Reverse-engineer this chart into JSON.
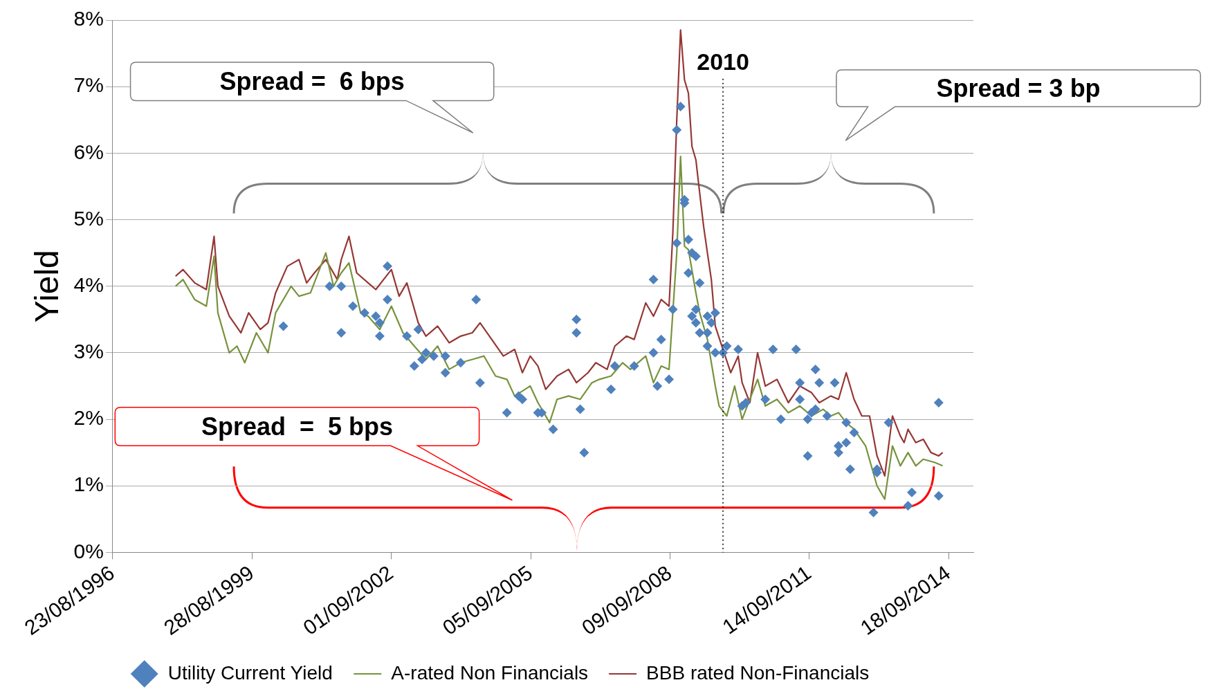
{
  "chart_data": {
    "type": "line",
    "ylabel": "Yield",
    "legend": "bottom",
    "grid": "y",
    "xlim": [
      "1996-08-23",
      "2015-04-01"
    ],
    "xticks": [
      {
        "value": "1996-08-23",
        "label": "23/08/1996"
      },
      {
        "value": "1999-08-28",
        "label": "28/08/1999"
      },
      {
        "value": "2002-09-01",
        "label": "01/09/2002"
      },
      {
        "value": "2005-09-05",
        "label": "05/09/2005"
      },
      {
        "value": "2008-09-09",
        "label": "09/09/2008"
      },
      {
        "value": "2011-09-14",
        "label": "14/09/2011"
      },
      {
        "value": "2014-09-18",
        "label": "18/09/2014"
      }
    ],
    "ylim": [
      0,
      8
    ],
    "yticks": [
      {
        "value": 0,
        "label": "0%"
      },
      {
        "value": 1,
        "label": "1%"
      },
      {
        "value": 2,
        "label": "2%"
      },
      {
        "value": 3,
        "label": "3%"
      },
      {
        "value": 4,
        "label": "4%"
      },
      {
        "value": 5,
        "label": "5%"
      },
      {
        "value": 6,
        "label": "6%"
      },
      {
        "value": 7,
        "label": "7%"
      },
      {
        "value": 8,
        "label": "8%"
      }
    ],
    "annotations": [
      "Spread =  6 bps",
      "Spread = 3 bp",
      "Spread  =  5 bps"
    ],
    "ref_lines": [
      {
        "axis": "x",
        "value": "2009-11",
        "label": "2010",
        "line_style": "dotted",
        "color": "#000000"
      }
    ],
    "series": [
      {
        "name": "Utility Current Yield",
        "type": "scatter",
        "marker": "diamond",
        "color": "#4f81bd",
        "x": [
          "2000-05",
          "2001-05",
          "2001-08",
          "2001-08",
          "2001-11",
          "2002-02",
          "2002-05",
          "2002-06",
          "2002-06",
          "2002-08",
          "2002-08",
          "2003-01",
          "2003-03",
          "2003-04",
          "2003-05",
          "2003-06",
          "2003-08",
          "2003-11",
          "2003-11",
          "2004-03",
          "2004-07",
          "2004-08",
          "2005-03",
          "2005-06",
          "2005-07",
          "2005-11",
          "2005-12",
          "2006-03",
          "2006-09",
          "2006-09",
          "2006-10",
          "2006-11",
          "2007-06",
          "2007-07",
          "2007-12",
          "2008-05",
          "2008-05",
          "2008-06",
          "2008-07",
          "2008-09",
          "2008-10",
          "2008-11",
          "2008-11",
          "2008-12",
          "2009-01",
          "2009-01",
          "2009-02",
          "2009-02",
          "2009-03",
          "2009-03",
          "2009-04",
          "2009-04",
          "2009-04",
          "2009-05",
          "2009-05",
          "2009-07",
          "2009-07",
          "2009-07",
          "2009-08",
          "2009-09",
          "2009-09",
          "2009-11",
          "2009-12",
          "2010-03",
          "2010-04",
          "2010-05",
          "2010-10",
          "2010-12",
          "2011-02",
          "2011-06",
          "2011-07",
          "2011-07",
          "2011-09",
          "2011-09",
          "2011-10",
          "2011-11",
          "2011-11",
          "2011-12",
          "2012-02",
          "2012-04",
          "2012-05",
          "2012-05",
          "2012-07",
          "2012-07",
          "2012-08",
          "2012-09",
          "2013-02",
          "2013-03",
          "2013-03",
          "2013-06",
          "2013-11",
          "2013-12",
          "2014-07",
          "2014-07"
        ],
        "values": [
          3.4,
          4.0,
          3.3,
          4.0,
          3.7,
          3.6,
          3.55,
          3.45,
          3.25,
          3.8,
          4.3,
          3.25,
          2.8,
          3.35,
          2.9,
          3.0,
          2.95,
          2.95,
          2.7,
          2.85,
          3.8,
          2.55,
          2.1,
          2.35,
          2.3,
          2.1,
          2.1,
          1.85,
          3.5,
          3.3,
          2.15,
          1.5,
          2.45,
          2.8,
          2.8,
          4.1,
          3.0,
          2.5,
          3.2,
          2.6,
          3.65,
          6.35,
          4.65,
          6.7,
          5.25,
          5.3,
          4.7,
          4.2,
          3.55,
          4.5,
          4.45,
          3.45,
          3.65,
          4.05,
          3.3,
          3.1,
          3.3,
          3.55,
          3.45,
          3.6,
          3.0,
          3.0,
          3.1,
          3.05,
          2.2,
          2.25,
          2.3,
          3.05,
          2.0,
          3.05,
          2.3,
          2.55,
          2.0,
          1.45,
          2.1,
          2.75,
          2.15,
          2.55,
          2.05,
          2.55,
          1.5,
          1.6,
          1.65,
          1.95,
          1.25,
          1.8,
          0.6,
          1.2,
          1.25,
          1.95,
          0.7,
          0.9,
          0.85,
          2.25
        ]
      },
      {
        "name": "A-rated Non Financials",
        "type": "line",
        "marker": "none",
        "color": "#77933c",
        "x": [
          "1998-01",
          "1998-03",
          "1998-06",
          "1998-09",
          "1998-11",
          "1998-12",
          "1999-03",
          "1999-05",
          "1999-07",
          "1999-10",
          "2000-01",
          "2000-03",
          "2000-07",
          "2000-09",
          "2000-12",
          "2001-04",
          "2001-06",
          "2001-08",
          "2001-10",
          "2002-01",
          "2002-03",
          "2002-06",
          "2002-09",
          "2002-12",
          "2003-03",
          "2003-06",
          "2003-09",
          "2003-12",
          "2004-03",
          "2004-06",
          "2004-09",
          "2004-12",
          "2005-03",
          "2005-05",
          "2005-09",
          "2005-11",
          "2006-02",
          "2006-04",
          "2006-07",
          "2006-10",
          "2007-01",
          "2007-03",
          "2007-06",
          "2007-09",
          "2007-11",
          "2008-03",
          "2008-05",
          "2008-07",
          "2008-09",
          "2008-11",
          "2008-12",
          "2009-01",
          "2009-02",
          "2009-04",
          "2009-05",
          "2009-07",
          "2009-09",
          "2009-10",
          "2009-12",
          "2010-02",
          "2010-04",
          "2010-06",
          "2010-08",
          "2010-10",
          "2011-01",
          "2011-04",
          "2011-07",
          "2011-10",
          "2012-01",
          "2012-03",
          "2012-05",
          "2012-07",
          "2012-09",
          "2012-12",
          "2013-03",
          "2013-05",
          "2013-07",
          "2013-09",
          "2013-11",
          "2014-01",
          "2014-03",
          "2014-06",
          "2014-08"
        ],
        "values": [
          4.0,
          4.1,
          3.8,
          3.7,
          4.45,
          3.6,
          3.0,
          3.1,
          2.85,
          3.3,
          3.0,
          3.6,
          4.0,
          3.85,
          3.9,
          4.5,
          4.0,
          4.2,
          4.35,
          3.6,
          3.55,
          3.35,
          3.7,
          3.3,
          3.1,
          2.9,
          3.1,
          2.75,
          2.85,
          2.9,
          2.95,
          2.65,
          2.6,
          2.35,
          2.5,
          2.25,
          1.95,
          2.3,
          2.35,
          2.3,
          2.55,
          2.6,
          2.65,
          2.85,
          2.75,
          2.95,
          2.55,
          2.8,
          2.75,
          4.5,
          5.95,
          4.6,
          4.55,
          3.9,
          3.6,
          3.2,
          2.5,
          2.2,
          2.05,
          2.5,
          2.0,
          2.3,
          2.6,
          2.2,
          2.3,
          2.1,
          2.2,
          2.05,
          2.15,
          2.05,
          2.1,
          1.95,
          1.85,
          1.6,
          1.0,
          0.8,
          1.6,
          1.3,
          1.5,
          1.3,
          1.4,
          1.35,
          1.3
        ]
      },
      {
        "name": "BBB rated Non-Financials",
        "type": "line",
        "marker": "none",
        "color": "#953735",
        "x": [
          "1998-01",
          "1998-03",
          "1998-06",
          "1998-09",
          "1998-11",
          "1998-12",
          "1999-03",
          "1999-06",
          "1999-08",
          "1999-11",
          "2000-01",
          "2000-03",
          "2000-06",
          "2000-09",
          "2000-11",
          "2001-01",
          "2001-04",
          "2001-07",
          "2001-08",
          "2001-10",
          "2001-12",
          "2002-03",
          "2002-05",
          "2002-07",
          "2002-09",
          "2002-11",
          "2003-01",
          "2003-04",
          "2003-06",
          "2003-09",
          "2003-12",
          "2004-03",
          "2004-06",
          "2004-08",
          "2004-11",
          "2005-02",
          "2005-05",
          "2005-07",
          "2005-09",
          "2005-11",
          "2006-01",
          "2006-04",
          "2006-07",
          "2006-09",
          "2006-12",
          "2007-02",
          "2007-05",
          "2007-07",
          "2007-10",
          "2007-12",
          "2008-03",
          "2008-05",
          "2008-07",
          "2008-09",
          "2008-10",
          "2008-11",
          "2008-12",
          "2009-01",
          "2009-02",
          "2009-03",
          "2009-04",
          "2009-05",
          "2009-06",
          "2009-07",
          "2009-08",
          "2009-09",
          "2009-11",
          "2010-01",
          "2010-03",
          "2010-04",
          "2010-06",
          "2010-08",
          "2010-10",
          "2011-01",
          "2011-04",
          "2011-07",
          "2011-10",
          "2011-12",
          "2012-03",
          "2012-05",
          "2012-07",
          "2012-09",
          "2012-11",
          "2013-01",
          "2013-03",
          "2013-05",
          "2013-07",
          "2013-09",
          "2013-10",
          "2013-11",
          "2014-01",
          "2014-03",
          "2014-05",
          "2014-07",
          "2014-08"
        ],
        "values": [
          4.15,
          4.25,
          4.05,
          3.95,
          4.75,
          4.0,
          3.55,
          3.3,
          3.6,
          3.35,
          3.45,
          3.9,
          4.3,
          4.4,
          4.05,
          4.2,
          4.4,
          4.1,
          4.4,
          4.75,
          4.2,
          4.05,
          3.95,
          4.1,
          4.25,
          3.85,
          4.05,
          3.45,
          3.25,
          3.4,
          3.15,
          3.25,
          3.3,
          3.45,
          3.2,
          2.95,
          3.05,
          2.7,
          2.95,
          2.8,
          2.45,
          2.65,
          2.75,
          2.55,
          2.7,
          2.85,
          2.75,
          3.1,
          3.25,
          3.2,
          3.75,
          3.55,
          3.8,
          3.7,
          4.8,
          6.5,
          7.85,
          7.1,
          6.9,
          6.1,
          5.9,
          5.4,
          4.9,
          4.5,
          4.1,
          3.4,
          3.05,
          2.7,
          2.95,
          2.55,
          2.25,
          3.0,
          2.5,
          2.6,
          2.25,
          2.5,
          2.4,
          2.25,
          2.35,
          2.3,
          2.7,
          2.3,
          2.05,
          2.05,
          1.45,
          1.15,
          2.05,
          1.75,
          1.65,
          1.85,
          1.65,
          1.7,
          1.5,
          1.45,
          1.5
        ]
      }
    ]
  }
}
